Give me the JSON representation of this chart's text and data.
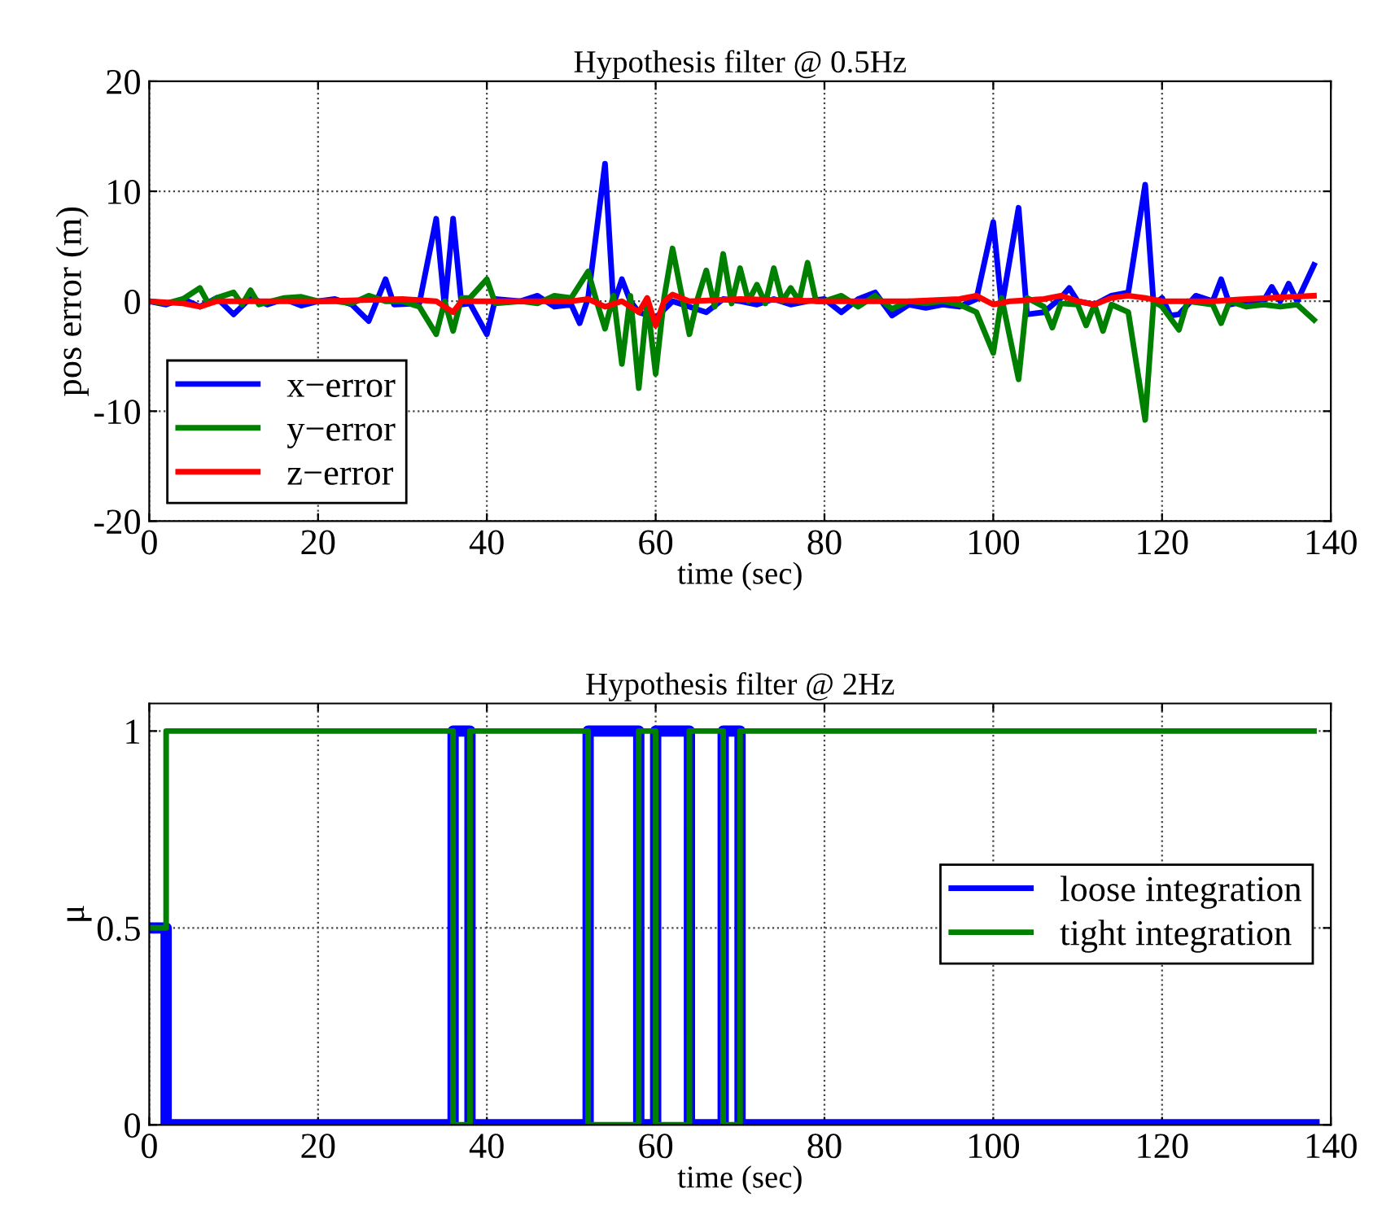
{
  "chart_data": [
    {
      "type": "line",
      "title": "Hypothesis filter @ 0.5Hz",
      "xlabel": "time (sec)",
      "ylabel": "pos error (m)",
      "xlim": [
        0,
        140
      ],
      "xticks": [
        0,
        20,
        40,
        60,
        80,
        100,
        120,
        140
      ],
      "ylim": [
        -20,
        20
      ],
      "yticks": [
        -20,
        -10,
        0,
        10,
        20
      ],
      "grid": true,
      "legend": "bottom left",
      "series": [
        {
          "name": "x−error",
          "color": "#0000ff",
          "x": [
            0,
            2,
            4,
            6,
            8,
            10,
            12,
            14,
            16,
            18,
            20,
            22,
            24,
            26,
            28,
            29,
            32,
            34,
            35,
            36,
            37,
            38,
            40,
            41,
            44,
            46,
            48,
            50,
            51,
            52,
            54,
            55,
            56,
            57,
            58,
            60,
            62,
            64,
            66,
            68,
            70,
            72,
            74,
            76,
            78,
            80,
            82,
            84,
            86,
            88,
            90,
            92,
            94,
            96,
            98,
            100,
            101,
            103,
            104,
            106,
            108,
            109,
            110,
            112,
            114,
            116,
            118,
            119,
            120,
            121,
            122,
            124,
            126,
            127,
            128,
            130,
            132,
            133,
            134,
            135,
            136,
            138
          ],
          "values": [
            0,
            -0.3,
            0.2,
            -0.5,
            0.3,
            -1.2,
            0.3,
            -0.3,
            0.2,
            -0.4,
            0,
            0.2,
            -0.3,
            -1.8,
            2,
            -0.3,
            -0.2,
            7.5,
            -0.5,
            7.5,
            -0.3,
            -0.2,
            -3,
            0.2,
            0,
            0.5,
            -0.5,
            -0.3,
            -2,
            0.3,
            12.5,
            -0.3,
            2,
            0,
            -1,
            -1.5,
            0,
            -0.5,
            -1,
            0.2,
            0,
            -0.3,
            0.2,
            -0.3,
            0,
            0.2,
            -1,
            0.2,
            0.8,
            -1.3,
            -0.3,
            -0.6,
            -0.3,
            -0.5,
            0.2,
            7.2,
            -0.5,
            8.5,
            -1.2,
            -1,
            0.3,
            1.2,
            0,
            -0.3,
            0.5,
            0.8,
            10.6,
            -0.3,
            0.3,
            -1.3,
            -1.2,
            0.5,
            0,
            2,
            -0.3,
            0,
            0,
            1.3,
            0,
            1.6,
            0,
            3.3
          ]
        },
        {
          "name": "y−error",
          "color": "#008000",
          "x": [
            0,
            2,
            4,
            6,
            7,
            8,
            10,
            11,
            12,
            13,
            16,
            18,
            20,
            22,
            24,
            26,
            28,
            30,
            32,
            34,
            35,
            36,
            37,
            38,
            40,
            41,
            44,
            46,
            48,
            50,
            52,
            53,
            54,
            55,
            56,
            57,
            58,
            59,
            60,
            61,
            62,
            64,
            65,
            66,
            67,
            68,
            69,
            70,
            71,
            72,
            73,
            74,
            75,
            76,
            77,
            78,
            79,
            80,
            82,
            84,
            86,
            88,
            90,
            92,
            94,
            96,
            98,
            100,
            101,
            103,
            104,
            106,
            107,
            108,
            110,
            111,
            112,
            113,
            114,
            116,
            118,
            119,
            120,
            122,
            123,
            126,
            127,
            128,
            130,
            132,
            134,
            136,
            138
          ],
          "values": [
            0,
            -0.2,
            0.2,
            1.2,
            -0.2,
            0.3,
            0.8,
            -0.3,
            1,
            -0.3,
            0.3,
            0.4,
            0,
            0,
            -0.2,
            0.5,
            0,
            0,
            -0.5,
            -3,
            0,
            -2.7,
            0.3,
            0.3,
            2,
            -0.2,
            0,
            -0.2,
            0.5,
            0.3,
            2.7,
            0,
            -2.5,
            0.5,
            -5.7,
            0.5,
            -7.9,
            0,
            -6.6,
            0.3,
            4.8,
            -3,
            0.3,
            2.8,
            -0.5,
            4.3,
            -0.2,
            3,
            0,
            1.5,
            -0.2,
            3,
            0,
            1.2,
            0,
            3.5,
            0,
            0,
            0.5,
            -0.5,
            0.5,
            -0.7,
            0,
            -0.2,
            0,
            -0.3,
            -1,
            -4.7,
            0.3,
            -7.1,
            0.3,
            -0.5,
            -2.4,
            -0.2,
            -0.3,
            -2.2,
            -0.3,
            -2.7,
            -0.3,
            -1,
            -10.8,
            0,
            -0.5,
            -2.6,
            0,
            -0.3,
            -2,
            0,
            -0.5,
            -0.3,
            -0.5,
            -0.3,
            -1.7
          ]
        },
        {
          "name": "z−error",
          "color": "#ff0000",
          "x": [
            0,
            4,
            6,
            8,
            20,
            30,
            34,
            36,
            37,
            50,
            52,
            54,
            56,
            58,
            59,
            60,
            61,
            62,
            64,
            70,
            80,
            90,
            96,
            98,
            100,
            102,
            106,
            108,
            110,
            112,
            114,
            116,
            118,
            120,
            126,
            130,
            138
          ],
          "values": [
            0,
            -0.2,
            -0.5,
            0,
            0,
            0.2,
            0,
            -1,
            0,
            0,
            0.2,
            -0.5,
            0,
            -1,
            0.3,
            -2.2,
            0,
            0.6,
            0,
            0.2,
            0,
            0,
            0.2,
            0.5,
            -0.3,
            0,
            0.2,
            0.5,
            0,
            -0.3,
            0.3,
            0.5,
            0.3,
            0,
            0,
            0.2,
            0.5
          ]
        }
      ]
    },
    {
      "type": "step",
      "title": "Hypothesis filter @ 2Hz",
      "xlabel": "time (sec)",
      "ylabel": "μ",
      "xlim": [
        0,
        140
      ],
      "xticks": [
        0,
        20,
        40,
        60,
        80,
        100,
        120,
        140
      ],
      "ylim": [
        0,
        1.07
      ],
      "yticks": [
        0,
        0.5,
        1
      ],
      "grid": true,
      "legend": "right",
      "series": [
        {
          "name": "loose integration",
          "color": "#0000ff",
          "x": [
            0,
            2,
            36,
            38,
            52,
            58,
            60,
            64,
            68,
            70,
            138
          ],
          "values": [
            0.5,
            0,
            1,
            0,
            1,
            0,
            1,
            0,
            1,
            0,
            0
          ]
        },
        {
          "name": "tight integration",
          "color": "#008000",
          "x": [
            0,
            2,
            36,
            38,
            52,
            58,
            60,
            64,
            68,
            70,
            138
          ],
          "values": [
            0.5,
            1,
            0,
            1,
            0,
            1,
            0,
            1,
            0,
            1,
            1
          ]
        }
      ]
    }
  ]
}
